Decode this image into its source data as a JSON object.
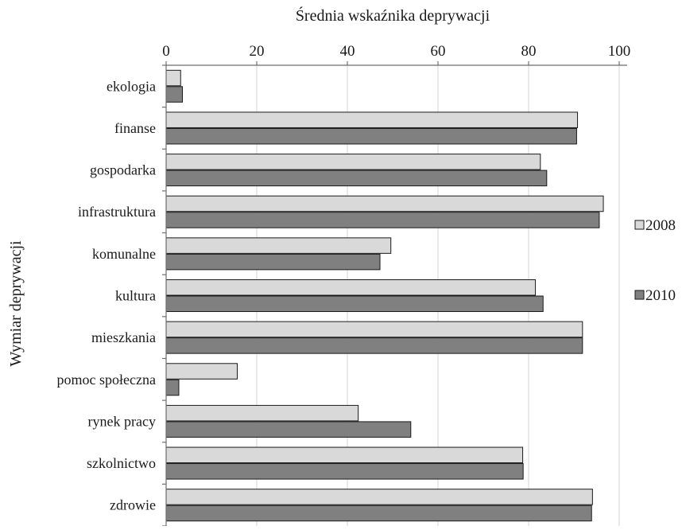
{
  "chart_data": {
    "type": "bar",
    "orientation": "horizontal",
    "title": "",
    "xlabel": "Średnia wskaźnika deprywacji",
    "ylabel": "Wymiar deprywacji",
    "xlim": [
      0,
      100
    ],
    "xticks": [
      0,
      20,
      40,
      60,
      80,
      100
    ],
    "xaxis_position": "top",
    "grid": "vertical",
    "legend_position": "right",
    "categories": [
      "ekologia",
      "finanse",
      "gospodarka",
      "infrastruktura",
      "komunalne",
      "kultura",
      "mieszkania",
      "pomoc społeczna",
      "rynek pracy",
      "szkolnictwo",
      "zdrowie"
    ],
    "series": [
      {
        "name": "2008",
        "color": "#d9d9d9",
        "values": [
          3.2,
          90.8,
          82.6,
          96.5,
          49.6,
          81.5,
          91.9,
          15.7,
          42.4,
          78.7,
          94.1
        ]
      },
      {
        "name": "2010",
        "color": "#808080",
        "values": [
          3.6,
          90.6,
          84.0,
          95.6,
          47.2,
          83.2,
          91.9,
          2.8,
          54.0,
          78.8,
          93.9
        ]
      }
    ]
  }
}
